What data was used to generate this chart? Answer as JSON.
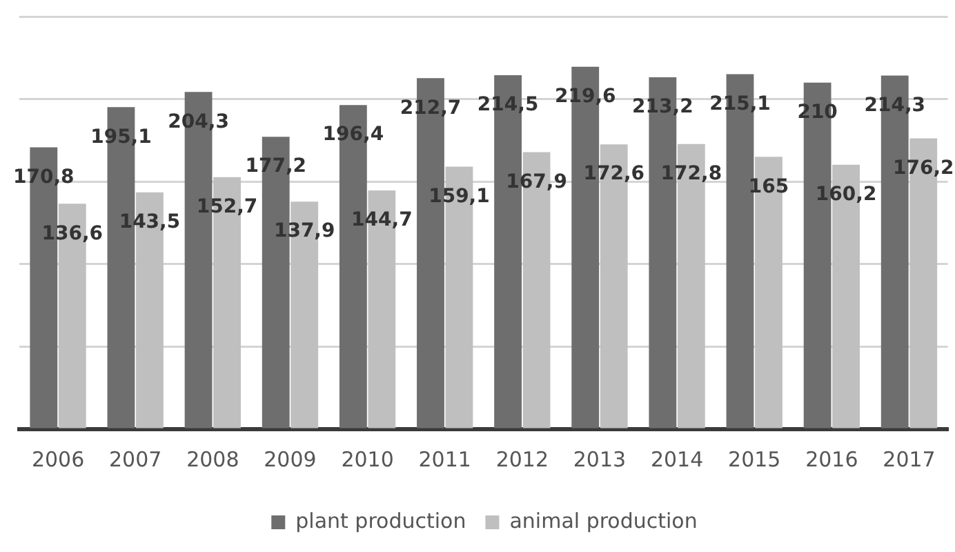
{
  "chart_data": {
    "type": "bar",
    "categories": [
      "2006",
      "2007",
      "2008",
      "2009",
      "2010",
      "2011",
      "2012",
      "2013",
      "2014",
      "2015",
      "2016",
      "2017"
    ],
    "series": [
      {
        "name": "plant production",
        "color": "#6e6e6e",
        "values": [
          170.8,
          195.1,
          204.3,
          177.2,
          196.4,
          212.7,
          214.5,
          219.6,
          213.2,
          215.1,
          210,
          214.3
        ],
        "value_labels": [
          "170,8",
          "195,1",
          "204,3",
          "177,2",
          "196,4",
          "212,7",
          "214,5",
          "219,6",
          "213,2",
          "215,1",
          "210",
          "214,3"
        ]
      },
      {
        "name": "animal production",
        "color": "#bfbfbf",
        "values": [
          136.6,
          143.5,
          152.7,
          137.9,
          144.7,
          159.1,
          167.9,
          172.6,
          172.8,
          165,
          160.2,
          176.2
        ],
        "value_labels": [
          "136,6",
          "143,5",
          "152,7",
          "137,9",
          "144,7",
          "159,1",
          "167,9",
          "172,6",
          "172,8",
          "165",
          "160,2",
          "176,2"
        ]
      }
    ],
    "ylim": [
      0,
      250
    ],
    "yticks": [
      {
        "value": 0,
        "label": null
      },
      {
        "value": 50,
        "label": null
      },
      {
        "value": 100,
        "label": null
      },
      {
        "value": 150,
        "label": null
      },
      {
        "value": 200,
        "label": null
      },
      {
        "value": 250,
        "label": null
      }
    ],
    "tick_labels": "x",
    "grid": "y",
    "legend": "bottom"
  }
}
